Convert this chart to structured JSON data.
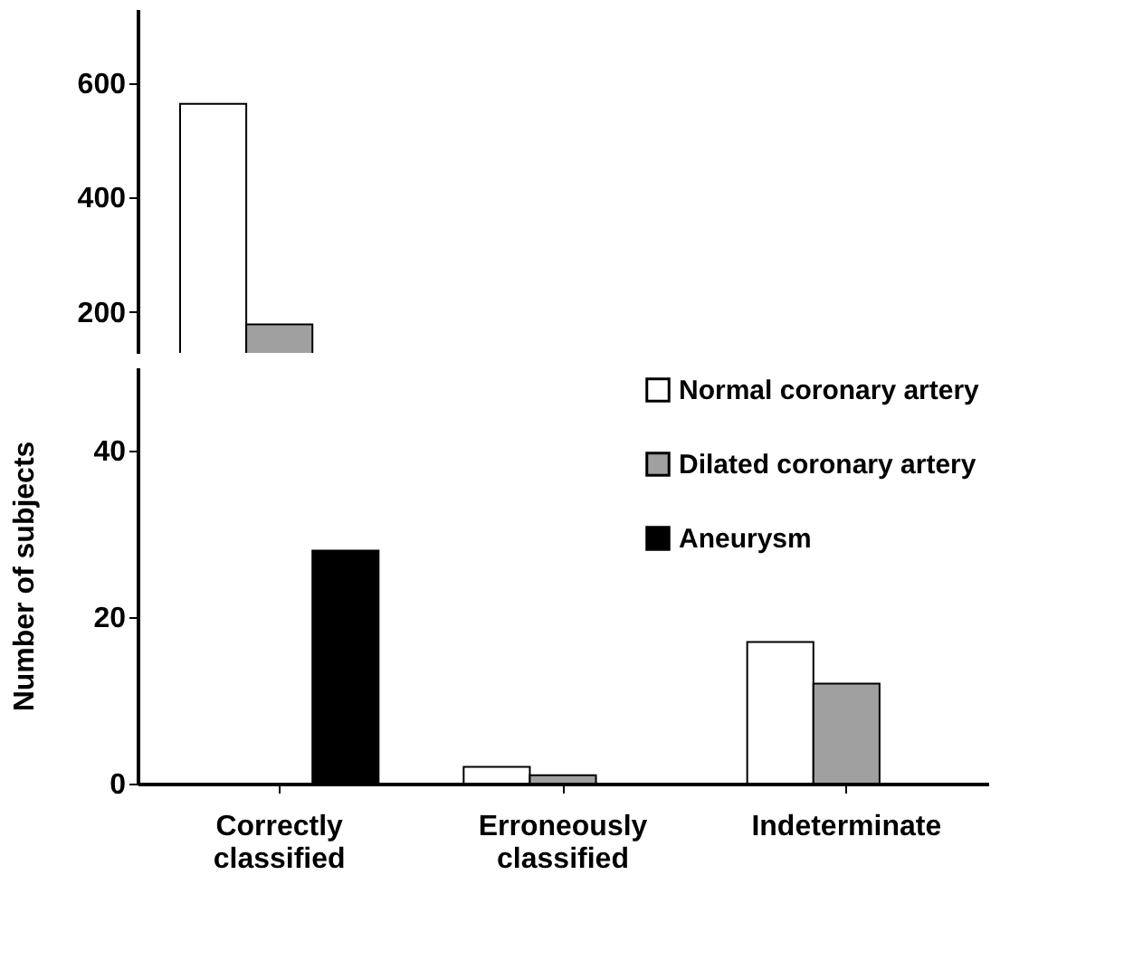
{
  "chart_data": [
    {
      "type": "bar",
      "categories": [
        null
      ],
      "ylim": [
        128,
        730
      ],
      "yticks": [
        200,
        400,
        600
      ],
      "tick_labels": "y",
      "grid": false,
      "series": [
        {
          "color": "#ffffff",
          "values": [
            564
          ]
        },
        {
          "color": "#a0a0a0",
          "values": [
            178
          ]
        }
      ]
    },
    {
      "type": "bar",
      "categories": [
        "Correctly classified",
        "Erroneously classified",
        "Indeterminate"
      ],
      "ylim": [
        0,
        50
      ],
      "yticks": [
        0,
        20,
        40
      ],
      "ylabel": "Number of subjects",
      "grid": false,
      "legend": "top right",
      "series": [
        {
          "name": "Normal coronary artery",
          "color": "#ffffff",
          "values": [
            null,
            2,
            17
          ]
        },
        {
          "name": "Dilated coronary artery",
          "color": "#a0a0a0",
          "values": [
            null,
            1,
            12
          ]
        },
        {
          "name": "Aneurysm",
          "color": "#000000",
          "values": [
            28,
            0,
            0
          ]
        }
      ]
    }
  ]
}
